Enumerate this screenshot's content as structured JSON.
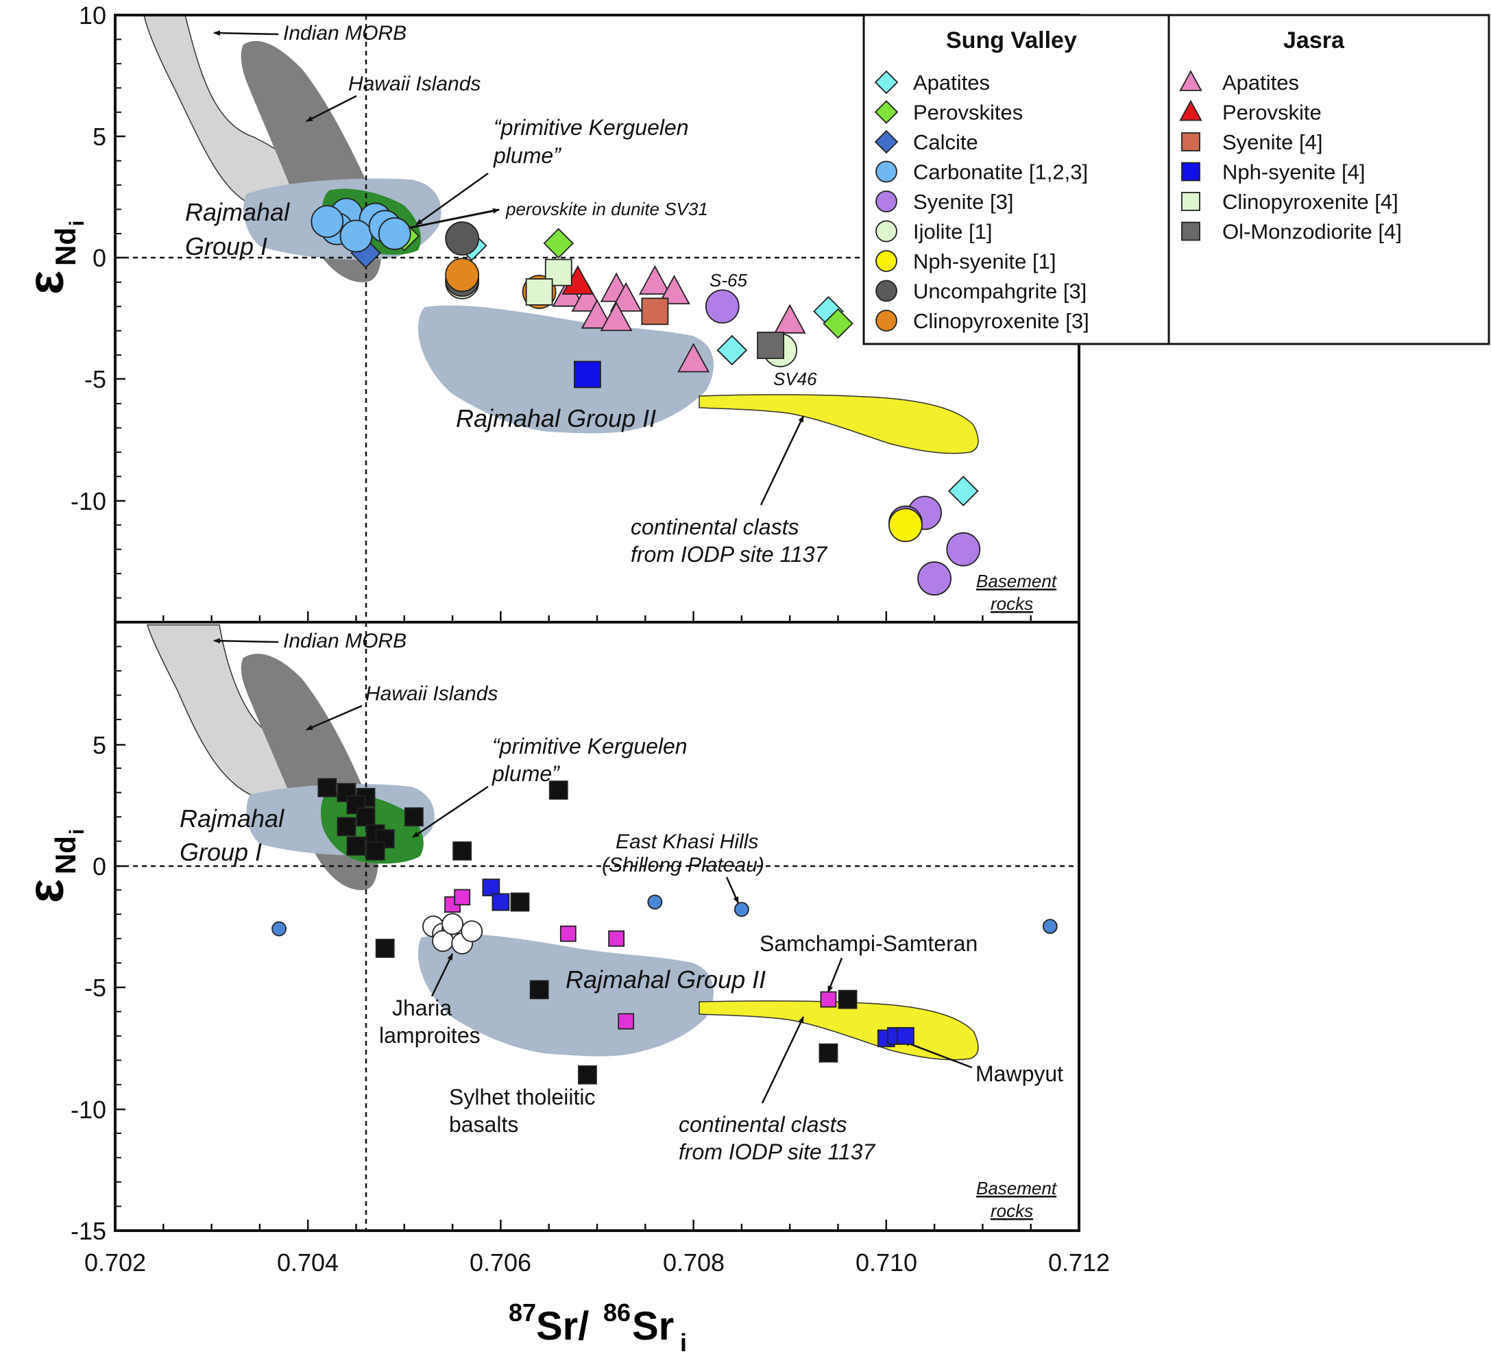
{
  "chart_data": {
    "type": "scatter",
    "x_axis": {
      "label_main": "Sr/",
      "label_sup1": "87",
      "label_sup2": "86",
      "label_end": "Sr",
      "label_sub": "i",
      "range": [
        0.702,
        0.712
      ],
      "ticks": [
        "0.702",
        "0.704",
        "0.706",
        "0.708",
        "0.710",
        "0.712"
      ]
    },
    "panels": [
      {
        "id": "top",
        "y_axis": {
          "label_main": "ε",
          "label_sub": "Nd",
          "label_subsub": "i",
          "range": [
            -15,
            10
          ],
          "ticks": [
            "10",
            "5",
            "0",
            "-5",
            "-10"
          ]
        },
        "legend": {
          "groups": [
            {
              "title": "Sung Valley",
              "items": [
                {
                  "label": "Apatites",
                  "shape": "diamond",
                  "color": "#7ff0f0"
                },
                {
                  "label": "Perovskites",
                  "shape": "diamond",
                  "color": "#7ee23a"
                },
                {
                  "label": "Calcite",
                  "shape": "diamond",
                  "color": "#3f6fc8"
                },
                {
                  "label": "Carbonatite [1,2,3]",
                  "shape": "circle",
                  "color": "#6fb8f2"
                },
                {
                  "label": "Syenite [3]",
                  "shape": "circle",
                  "color": "#b07ee6"
                },
                {
                  "label": "Ijolite [1]",
                  "shape": "circle",
                  "color": "#dff5d0"
                },
                {
                  "label": "Nph-syenite [1]",
                  "shape": "circle",
                  "color": "#fbf20a"
                },
                {
                  "label": "Uncompahgrite [3]",
                  "shape": "circle",
                  "color": "#5a5a5a"
                },
                {
                  "label": "Clinopyroxenite [3]",
                  "shape": "circle",
                  "color": "#e2861f"
                }
              ]
            },
            {
              "title": "Jasra",
              "items": [
                {
                  "label": "Apatites",
                  "shape": "triangle",
                  "color": "#e886c0"
                },
                {
                  "label": "Perovskite",
                  "shape": "triangle",
                  "color": "#e0161b"
                },
                {
                  "label": "Syenite [4]",
                  "shape": "square",
                  "color": "#d06a50"
                },
                {
                  "label": "Nph-syenite [4]",
                  "shape": "square",
                  "color": "#1010e8"
                },
                {
                  "label": "Clinopyroxenite [4]",
                  "shape": "square",
                  "color": "#dff5d0"
                },
                {
                  "label": "Ol-Monzodiorite [4]",
                  "shape": "square",
                  "color": "#6a6a6a"
                }
              ]
            }
          ]
        },
        "annotations": [
          "Indian MORB",
          "Hawaii Islands",
          "“primitive Kerguelen",
          "plume”",
          "perovskite in dunite SV31",
          "Rajmahal",
          "Group I",
          "Rajmahal Group II",
          "S-65",
          "SV46",
          "continental clasts",
          "from IODP site 1137",
          "Basement",
          "rocks"
        ],
        "series": [
          {
            "group": "Sung Valley",
            "name": "Apatites",
            "shape": "diamond",
            "color": "#7ff0f0",
            "size": 21,
            "points": [
              [
                0.7045,
                1.1
              ],
              [
                0.7057,
                0.5
              ],
              [
                0.7084,
                -3.8
              ],
              [
                0.7094,
                -2.2
              ],
              [
                0.7108,
                -9.6
              ]
            ]
          },
          {
            "group": "Sung Valley",
            "name": "Perovskites",
            "shape": "diamond",
            "color": "#7ee23a",
            "size": 21,
            "points": [
              [
                0.705,
                0.9
              ],
              [
                0.7066,
                0.6
              ],
              [
                0.7095,
                -2.7
              ]
            ]
          },
          {
            "group": "Sung Valley",
            "name": "Calcite",
            "shape": "diamond",
            "color": "#3f6fc8",
            "size": 21,
            "points": [
              [
                0.7046,
                0.2
              ]
            ]
          },
          {
            "group": "Sung Valley",
            "name": "Carbonatite [1,2,3]",
            "shape": "circle",
            "color": "#6fb8f2",
            "size": 23,
            "points": [
              [
                0.7044,
                1.8
              ],
              [
                0.7047,
                1.6
              ],
              [
                0.7043,
                1.2
              ],
              [
                0.7045,
                0.9
              ],
              [
                0.7048,
                1.3
              ],
              [
                0.7042,
                1.5
              ],
              [
                0.7049,
                1.0
              ]
            ]
          },
          {
            "group": "Sung Valley",
            "name": "Syenite [3]",
            "shape": "circle",
            "color": "#b07ee6",
            "size": 24,
            "points": [
              [
                0.7083,
                -2.0
              ],
              [
                0.7104,
                -10.5
              ],
              [
                0.7102,
                -10.9
              ],
              [
                0.7108,
                -12.0
              ],
              [
                0.7105,
                -13.2
              ]
            ]
          },
          {
            "group": "Sung Valley",
            "name": "Ijolite [1]",
            "shape": "circle",
            "color": "#dff5d0",
            "size": 24,
            "points": [
              [
                0.7056,
                -1.0
              ],
              [
                0.7089,
                -3.8
              ]
            ]
          },
          {
            "group": "Sung Valley",
            "name": "Nph-syenite [1]",
            "shape": "circle",
            "color": "#fbf20a",
            "size": 24,
            "points": [
              [
                0.7102,
                -11.0
              ]
            ]
          },
          {
            "group": "Sung Valley",
            "name": "Uncompahgrite [3]",
            "shape": "circle",
            "color": "#5a5a5a",
            "size": 24,
            "points": [
              [
                0.7056,
                0.8
              ],
              [
                0.7056,
                -0.9
              ]
            ]
          },
          {
            "group": "Sung Valley",
            "name": "Clinopyroxenite [3]",
            "shape": "circle",
            "color": "#e2861f",
            "size": 24,
            "points": [
              [
                0.7056,
                -0.7
              ],
              [
                0.7064,
                -1.4
              ]
            ]
          },
          {
            "group": "Jasra",
            "name": "Apatites",
            "shape": "triangle",
            "color": "#e886c0",
            "size": 23,
            "points": [
              [
                0.7067,
                -1.5
              ],
              [
                0.7069,
                -1.7
              ],
              [
                0.7072,
                -1.3
              ],
              [
                0.7073,
                -1.7
              ],
              [
                0.707,
                -2.4
              ],
              [
                0.7072,
                -2.5
              ],
              [
                0.7076,
                -1.0
              ],
              [
                0.7078,
                -1.4
              ],
              [
                0.708,
                -4.2
              ],
              [
                0.709,
                -2.6
              ]
            ]
          },
          {
            "group": "Jasra",
            "name": "Perovskite",
            "shape": "triangle",
            "color": "#e0161b",
            "size": 23,
            "points": [
              [
                0.7068,
                -1.0
              ]
            ]
          },
          {
            "group": "Jasra",
            "name": "Syenite [4]",
            "shape": "square",
            "color": "#d06a50",
            "size": 19,
            "points": [
              [
                0.7076,
                -2.2
              ]
            ]
          },
          {
            "group": "Jasra",
            "name": "Nph-syenite [4]",
            "shape": "square",
            "color": "#1010e8",
            "size": 19,
            "points": [
              [
                0.7069,
                -4.8
              ]
            ]
          },
          {
            "group": "Jasra",
            "name": "Clinopyroxenite [4]",
            "shape": "square",
            "color": "#dff5d0",
            "size": 19,
            "points": [
              [
                0.7066,
                -0.6
              ],
              [
                0.7064,
                -1.4
              ]
            ]
          },
          {
            "group": "Jasra",
            "name": "Ol-Monzodiorite [4]",
            "shape": "square",
            "color": "#6a6a6a",
            "size": 19,
            "points": [
              [
                0.7088,
                -3.6
              ]
            ]
          }
        ]
      },
      {
        "id": "bottom",
        "y_axis": {
          "label_main": "ε",
          "label_sub": "Nd",
          "label_subsub": "i",
          "range": [
            -15,
            10
          ],
          "ticks": [
            "5",
            "0",
            "-5",
            "-10",
            "-15"
          ]
        },
        "annotations": [
          "Indian MORB",
          "Hawaii Islands",
          "“primitive Kerguelen",
          "plume”",
          "Rajmahal",
          "Group I",
          "East Khasi Hills",
          "(Shillong Plateau)",
          "Samchampi-Samteran",
          "Rajmahal Group II",
          "Jharia",
          "lamproites",
          "Sylhet tholeiitic",
          "basalts",
          "continental clasts",
          "from IODP site 1137",
          "Mawpyut",
          "Basement",
          "rocks"
        ],
        "series": [
          {
            "shape": "square",
            "color": "#111111",
            "size": 13,
            "points": [
              [
                0.7042,
                3.2
              ],
              [
                0.7044,
                3.0
              ],
              [
                0.7046,
                2.8
              ],
              [
                0.7045,
                2.5
              ],
              [
                0.7046,
                2.0
              ],
              [
                0.7044,
                1.6
              ],
              [
                0.7047,
                1.3
              ],
              [
                0.7048,
                1.1
              ],
              [
                0.7045,
                0.8
              ],
              [
                0.7047,
                0.6
              ],
              [
                0.7051,
                2.0
              ],
              [
                0.7056,
                0.6
              ],
              [
                0.7066,
                3.1
              ],
              [
                0.7048,
                -3.4
              ],
              [
                0.7062,
                -1.5
              ],
              [
                0.7064,
                -5.1
              ],
              [
                0.7069,
                -8.6
              ],
              [
                0.7094,
                -7.7
              ],
              [
                0.7096,
                -5.5
              ]
            ]
          },
          {
            "shape": "square",
            "color": "#e233d8",
            "size": 11,
            "points": [
              [
                0.7055,
                -1.6
              ],
              [
                0.7056,
                -1.3
              ],
              [
                0.7067,
                -2.8
              ],
              [
                0.7072,
                -3.0
              ],
              [
                0.7073,
                -6.4
              ],
              [
                0.7094,
                -5.5
              ]
            ]
          },
          {
            "shape": "square",
            "color": "#2020e0",
            "size": 12,
            "points": [
              [
                0.7059,
                -0.9
              ],
              [
                0.706,
                -1.5
              ],
              [
                0.71,
                -7.1
              ],
              [
                0.7101,
                -7.0
              ],
              [
                0.7102,
                -7.0
              ]
            ]
          },
          {
            "shape": "circle",
            "color": "#4a86d6",
            "size": 10,
            "points": [
              [
                0.7037,
                -2.6
              ],
              [
                0.7076,
                -1.5
              ],
              [
                0.7085,
                -1.8
              ],
              [
                0.7117,
                -2.5
              ]
            ]
          },
          {
            "shape": "circle",
            "color": "#ffffff",
            "size": 15,
            "points": [
              [
                0.7053,
                -2.5
              ],
              [
                0.7054,
                -2.8
              ],
              [
                0.7055,
                -2.6
              ],
              [
                0.7056,
                -2.9
              ],
              [
                0.7054,
                -3.1
              ],
              [
                0.7056,
                -3.2
              ],
              [
                0.7055,
                -2.4
              ],
              [
                0.7057,
                -2.7
              ]
            ]
          }
        ]
      }
    ],
    "reference_lines": {
      "x": 0.7046,
      "y": 0
    }
  }
}
